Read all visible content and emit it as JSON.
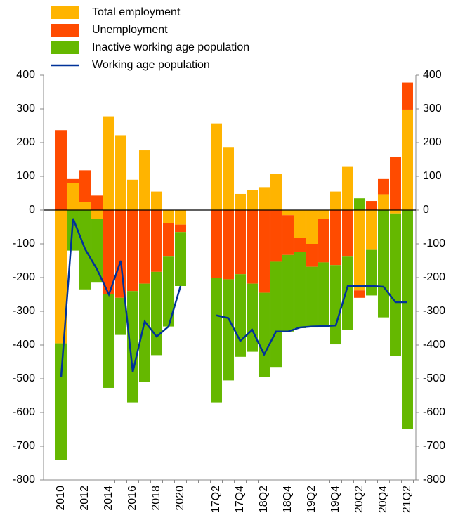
{
  "chart_data": {
    "type": "stacked-bar-line",
    "categories": [
      "2010",
      null,
      "2012",
      null,
      "2014",
      null,
      "2016",
      null,
      "2018",
      null,
      "2020",
      null,
      null,
      "17Q2",
      null,
      "17Q4",
      null,
      "18Q2",
      null,
      "18Q4",
      null,
      "19Q2",
      null,
      "19Q4",
      null,
      "20Q2",
      null,
      "20Q4",
      null,
      "21Q2"
    ],
    "series": [
      {
        "name": "Total employment",
        "color": "#ffb400",
        "kind": "bar",
        "values": [
          -395,
          80,
          25,
          -25,
          278,
          222,
          90,
          177,
          55,
          -38,
          -43,
          null,
          null,
          257,
          187,
          48,
          60,
          68,
          107,
          -15,
          -83,
          -100,
          -25,
          55,
          130,
          -238,
          -118,
          47,
          -10,
          298
        ]
      },
      {
        "name": "Unemployment",
        "color": "#ff4b00",
        "kind": "bar",
        "values": [
          237,
          12,
          93,
          43,
          -250,
          -260,
          -240,
          -218,
          -183,
          -100,
          -22,
          null,
          null,
          -200,
          -205,
          -190,
          -218,
          -245,
          -153,
          -118,
          -40,
          -68,
          -130,
          -163,
          -138,
          -22,
          27,
          45,
          158,
          80
        ]
      },
      {
        "name": "Inactive working age population",
        "color": "#65b800",
        "kind": "bar",
        "values": [
          -345,
          -120,
          -235,
          -190,
          -277,
          -110,
          -330,
          -292,
          -247,
          -207,
          -160,
          null,
          null,
          -370,
          -300,
          -245,
          -202,
          -250,
          -312,
          -227,
          -227,
          -180,
          -190,
          -235,
          -217,
          35,
          -135,
          -318,
          -422,
          -650
        ]
      },
      {
        "name": "Working age population",
        "color": "#003299",
        "kind": "line",
        "values": [
          -495,
          -25,
          -115,
          -175,
          -250,
          -150,
          -480,
          -330,
          -375,
          -345,
          -225,
          null,
          null,
          -312,
          -320,
          -388,
          -355,
          -428,
          -360,
          -360,
          -348,
          -345,
          -344,
          -342,
          -225,
          -225,
          -225,
          -227,
          -273,
          -273
        ]
      }
    ],
    "ylim": [
      -800,
      400
    ],
    "yticks": [
      -800,
      -700,
      -600,
      -500,
      -400,
      -300,
      -200,
      -100,
      0,
      100,
      200,
      300,
      400
    ],
    "y2lim": [
      -800,
      400
    ],
    "y2ticks": [
      -800,
      -700,
      -600,
      -500,
      -400,
      -300,
      -200,
      -100,
      0,
      100,
      200,
      300,
      400
    ],
    "legend": "top-left"
  }
}
